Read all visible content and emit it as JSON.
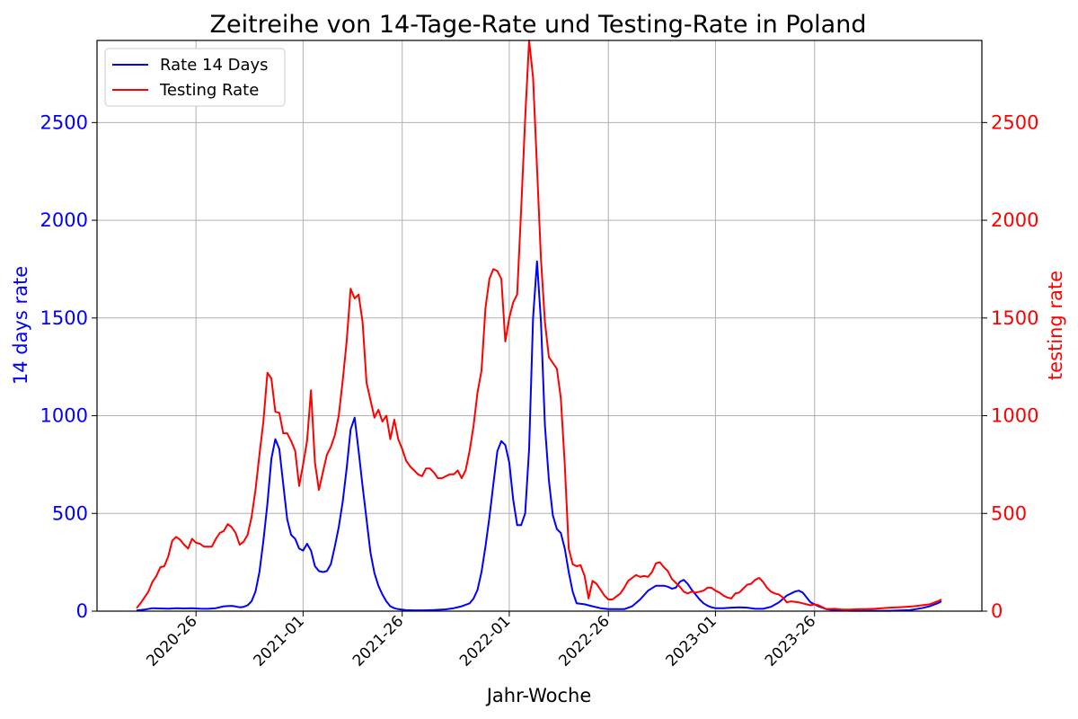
{
  "chart_data": {
    "type": "line",
    "title": "Zeitreihe von 14-Tage-Rate und Testing-Rate in Poland",
    "xlabel": "Jahr-Woche",
    "ylabel_left": "14 days rate",
    "ylabel_right": "testing rate",
    "xlim": [
      0,
      203
    ],
    "ylim": [
      0,
      2920
    ],
    "grid": true,
    "legend_position": "top-left",
    "x_ticks": [
      {
        "label": "2020-26",
        "x": 15
      },
      {
        "label": "2021-01",
        "x": 42
      },
      {
        "label": "2021-26",
        "x": 67
      },
      {
        "label": "2022-01",
        "x": 94
      },
      {
        "label": "2022-26",
        "x": 119
      },
      {
        "label": "2023-01",
        "x": 146
      },
      {
        "label": "2023-26",
        "x": 171
      }
    ],
    "y_ticks": [
      0,
      500,
      1000,
      1500,
      2000,
      2500
    ],
    "colors": {
      "rate14": "#0000ff",
      "testing": "#ff0000"
    },
    "series": [
      {
        "name": "Rate 14 Days",
        "axis": "left",
        "points": [
          [
            0,
            3
          ],
          [
            2,
            8
          ],
          [
            4,
            15
          ],
          [
            6,
            14
          ],
          [
            8,
            13
          ],
          [
            10,
            15
          ],
          [
            12,
            14
          ],
          [
            14,
            15
          ],
          [
            16,
            13
          ],
          [
            18,
            12
          ],
          [
            20,
            15
          ],
          [
            22,
            25
          ],
          [
            24,
            27
          ],
          [
            25,
            24
          ],
          [
            26,
            20
          ],
          [
            27,
            22
          ],
          [
            28,
            30
          ],
          [
            29,
            50
          ],
          [
            30,
            100
          ],
          [
            31,
            200
          ],
          [
            32,
            360
          ],
          [
            33,
            550
          ],
          [
            34,
            780
          ],
          [
            35,
            880
          ],
          [
            36,
            830
          ],
          [
            37,
            650
          ],
          [
            38,
            470
          ],
          [
            39,
            390
          ],
          [
            40,
            370
          ],
          [
            41,
            320
          ],
          [
            42,
            310
          ],
          [
            43,
            345
          ],
          [
            44,
            310
          ],
          [
            45,
            230
          ],
          [
            46,
            205
          ],
          [
            47,
            200
          ],
          [
            48,
            205
          ],
          [
            49,
            240
          ],
          [
            50,
            330
          ],
          [
            51,
            430
          ],
          [
            52,
            560
          ],
          [
            53,
            730
          ],
          [
            54,
            930
          ],
          [
            55,
            990
          ],
          [
            56,
            820
          ],
          [
            57,
            640
          ],
          [
            58,
            470
          ],
          [
            59,
            300
          ],
          [
            60,
            195
          ],
          [
            61,
            130
          ],
          [
            62,
            85
          ],
          [
            63,
            50
          ],
          [
            64,
            25
          ],
          [
            65,
            15
          ],
          [
            66,
            10
          ],
          [
            68,
            5
          ],
          [
            70,
            4
          ],
          [
            72,
            4
          ],
          [
            75,
            6
          ],
          [
            78,
            9
          ],
          [
            80,
            15
          ],
          [
            82,
            25
          ],
          [
            84,
            40
          ],
          [
            85,
            65
          ],
          [
            86,
            110
          ],
          [
            87,
            200
          ],
          [
            88,
            330
          ],
          [
            89,
            480
          ],
          [
            90,
            650
          ],
          [
            91,
            820
          ],
          [
            92,
            870
          ],
          [
            93,
            850
          ],
          [
            94,
            760
          ],
          [
            95,
            570
          ],
          [
            96,
            440
          ],
          [
            97,
            440
          ],
          [
            98,
            500
          ],
          [
            99,
            830
          ],
          [
            100,
            1500
          ],
          [
            101,
            1790
          ],
          [
            102,
            1480
          ],
          [
            103,
            950
          ],
          [
            104,
            670
          ],
          [
            105,
            490
          ],
          [
            106,
            420
          ],
          [
            107,
            400
          ],
          [
            108,
            320
          ],
          [
            109,
            200
          ],
          [
            110,
            100
          ],
          [
            111,
            40
          ],
          [
            113,
            35
          ],
          [
            115,
            25
          ],
          [
            117,
            15
          ],
          [
            119,
            10
          ],
          [
            121,
            10
          ],
          [
            123,
            10
          ],
          [
            125,
            25
          ],
          [
            127,
            60
          ],
          [
            129,
            105
          ],
          [
            131,
            130
          ],
          [
            133,
            130
          ],
          [
            134,
            125
          ],
          [
            135,
            115
          ],
          [
            136,
            120
          ],
          [
            137,
            150
          ],
          [
            138,
            160
          ],
          [
            139,
            140
          ],
          [
            140,
            110
          ],
          [
            141,
            85
          ],
          [
            142,
            60
          ],
          [
            143,
            40
          ],
          [
            144,
            28
          ],
          [
            145,
            20
          ],
          [
            146,
            15
          ],
          [
            148,
            15
          ],
          [
            150,
            18
          ],
          [
            152,
            20
          ],
          [
            154,
            18
          ],
          [
            156,
            12
          ],
          [
            158,
            12
          ],
          [
            160,
            22
          ],
          [
            162,
            45
          ],
          [
            164,
            80
          ],
          [
            166,
            100
          ],
          [
            167,
            105
          ],
          [
            168,
            95
          ],
          [
            169,
            70
          ],
          [
            170,
            45
          ],
          [
            172,
            25
          ],
          [
            174,
            10
          ],
          [
            176,
            5
          ],
          [
            180,
            2
          ],
          [
            185,
            2
          ],
          [
            190,
            2
          ],
          [
            195,
            5
          ],
          [
            198,
            15
          ],
          [
            200,
            25
          ],
          [
            202,
            40
          ],
          [
            203,
            50
          ]
        ]
      },
      {
        "name": "Testing Rate",
        "axis": "right",
        "points": [
          [
            0,
            15
          ],
          [
            1,
            40
          ],
          [
            2,
            70
          ],
          [
            3,
            100
          ],
          [
            4,
            150
          ],
          [
            5,
            180
          ],
          [
            6,
            225
          ],
          [
            7,
            230
          ],
          [
            8,
            280
          ],
          [
            9,
            360
          ],
          [
            10,
            380
          ],
          [
            11,
            365
          ],
          [
            12,
            340
          ],
          [
            13,
            320
          ],
          [
            14,
            370
          ],
          [
            15,
            350
          ],
          [
            16,
            345
          ],
          [
            17,
            330
          ],
          [
            18,
            330
          ],
          [
            19,
            330
          ],
          [
            20,
            370
          ],
          [
            21,
            400
          ],
          [
            22,
            410
          ],
          [
            23,
            445
          ],
          [
            24,
            430
          ],
          [
            25,
            400
          ],
          [
            26,
            340
          ],
          [
            27,
            355
          ],
          [
            28,
            390
          ],
          [
            29,
            480
          ],
          [
            30,
            620
          ],
          [
            31,
            800
          ],
          [
            32,
            970
          ],
          [
            33,
            1220
          ],
          [
            34,
            1190
          ],
          [
            35,
            1020
          ],
          [
            36,
            1015
          ],
          [
            37,
            910
          ],
          [
            38,
            910
          ],
          [
            39,
            870
          ],
          [
            40,
            820
          ],
          [
            41,
            640
          ],
          [
            42,
            750
          ],
          [
            43,
            870
          ],
          [
            44,
            1130
          ],
          [
            45,
            760
          ],
          [
            46,
            620
          ],
          [
            47,
            710
          ],
          [
            48,
            800
          ],
          [
            49,
            840
          ],
          [
            50,
            900
          ],
          [
            51,
            1000
          ],
          [
            52,
            1180
          ],
          [
            53,
            1380
          ],
          [
            54,
            1650
          ],
          [
            55,
            1600
          ],
          [
            56,
            1620
          ],
          [
            57,
            1480
          ],
          [
            58,
            1170
          ],
          [
            59,
            1080
          ],
          [
            60,
            990
          ],
          [
            61,
            1030
          ],
          [
            62,
            970
          ],
          [
            63,
            1000
          ],
          [
            64,
            880
          ],
          [
            65,
            980
          ],
          [
            66,
            880
          ],
          [
            67,
            830
          ],
          [
            68,
            770
          ],
          [
            69,
            740
          ],
          [
            70,
            720
          ],
          [
            71,
            700
          ],
          [
            72,
            690
          ],
          [
            73,
            730
          ],
          [
            74,
            730
          ],
          [
            75,
            710
          ],
          [
            76,
            680
          ],
          [
            77,
            680
          ],
          [
            78,
            690
          ],
          [
            79,
            700
          ],
          [
            80,
            700
          ],
          [
            81,
            720
          ],
          [
            82,
            680
          ],
          [
            83,
            720
          ],
          [
            84,
            820
          ],
          [
            85,
            950
          ],
          [
            86,
            1120
          ],
          [
            87,
            1230
          ],
          [
            88,
            1550
          ],
          [
            89,
            1700
          ],
          [
            90,
            1750
          ],
          [
            91,
            1740
          ],
          [
            92,
            1700
          ],
          [
            93,
            1380
          ],
          [
            94,
            1500
          ],
          [
            95,
            1580
          ],
          [
            96,
            1620
          ],
          [
            97,
            2050
          ],
          [
            98,
            2520
          ],
          [
            99,
            2920
          ],
          [
            100,
            2730
          ],
          [
            101,
            2270
          ],
          [
            102,
            1800
          ],
          [
            103,
            1480
          ],
          [
            104,
            1300
          ],
          [
            105,
            1270
          ],
          [
            106,
            1240
          ],
          [
            107,
            1090
          ],
          [
            108,
            750
          ],
          [
            109,
            320
          ],
          [
            110,
            240
          ],
          [
            111,
            230
          ],
          [
            112,
            235
          ],
          [
            113,
            180
          ],
          [
            114,
            65
          ],
          [
            115,
            155
          ],
          [
            116,
            140
          ],
          [
            117,
            110
          ],
          [
            118,
            80
          ],
          [
            119,
            60
          ],
          [
            120,
            60
          ],
          [
            121,
            75
          ],
          [
            122,
            90
          ],
          [
            123,
            120
          ],
          [
            124,
            155
          ],
          [
            125,
            170
          ],
          [
            126,
            185
          ],
          [
            127,
            175
          ],
          [
            128,
            180
          ],
          [
            129,
            175
          ],
          [
            130,
            200
          ],
          [
            131,
            245
          ],
          [
            132,
            250
          ],
          [
            133,
            225
          ],
          [
            134,
            205
          ],
          [
            135,
            165
          ],
          [
            136,
            145
          ],
          [
            137,
            125
          ],
          [
            138,
            100
          ],
          [
            139,
            90
          ],
          [
            140,
            100
          ],
          [
            141,
            95
          ],
          [
            142,
            100
          ],
          [
            143,
            105
          ],
          [
            144,
            120
          ],
          [
            145,
            120
          ],
          [
            146,
            105
          ],
          [
            147,
            95
          ],
          [
            148,
            80
          ],
          [
            149,
            70
          ],
          [
            150,
            65
          ],
          [
            151,
            90
          ],
          [
            152,
            95
          ],
          [
            153,
            115
          ],
          [
            154,
            135
          ],
          [
            155,
            140
          ],
          [
            156,
            160
          ],
          [
            157,
            170
          ],
          [
            158,
            150
          ],
          [
            159,
            120
          ],
          [
            160,
            100
          ],
          [
            161,
            90
          ],
          [
            162,
            85
          ],
          [
            163,
            70
          ],
          [
            164,
            45
          ],
          [
            165,
            50
          ],
          [
            166,
            48
          ],
          [
            167,
            45
          ],
          [
            168,
            40
          ],
          [
            169,
            35
          ],
          [
            170,
            30
          ],
          [
            171,
            35
          ],
          [
            172,
            30
          ],
          [
            173,
            20
          ],
          [
            174,
            10
          ],
          [
            176,
            12
          ],
          [
            178,
            8
          ],
          [
            180,
            8
          ],
          [
            182,
            10
          ],
          [
            184,
            10
          ],
          [
            186,
            12
          ],
          [
            188,
            15
          ],
          [
            190,
            18
          ],
          [
            192,
            20
          ],
          [
            194,
            22
          ],
          [
            196,
            25
          ],
          [
            198,
            30
          ],
          [
            200,
            35
          ],
          [
            202,
            50
          ],
          [
            203,
            60
          ]
        ]
      }
    ]
  }
}
